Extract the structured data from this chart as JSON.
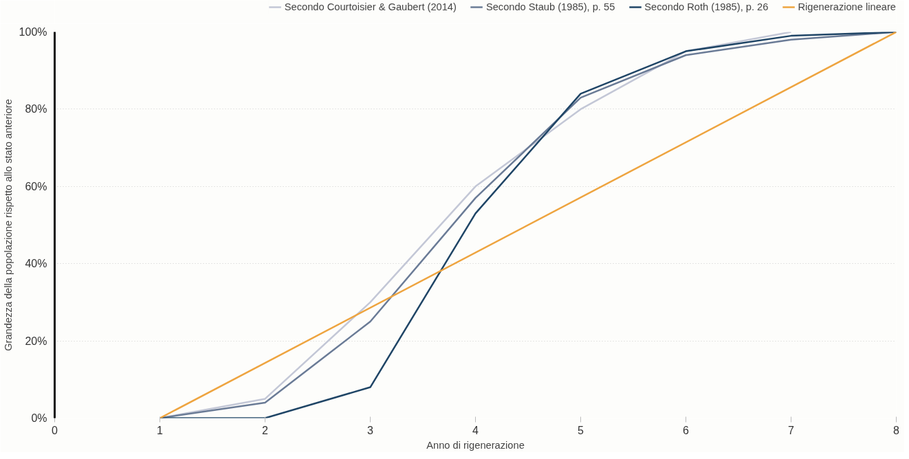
{
  "chart_data": {
    "type": "line",
    "xlabel": "Anno di rigenerazione",
    "ylabel": "Grandezza della popolazione rispetto allo stato anteriore",
    "xlim": [
      0,
      8
    ],
    "xticks": [
      0,
      1,
      2,
      3,
      4,
      5,
      6,
      7,
      8
    ],
    "ylim": [
      0,
      100
    ],
    "yticks": [
      {
        "value": 0,
        "label": "0%"
      },
      {
        "value": 20,
        "label": "20%"
      },
      {
        "value": 40,
        "label": "40%"
      },
      {
        "value": 60,
        "label": "60%"
      },
      {
        "value": 80,
        "label": "80%"
      },
      {
        "value": 100,
        "label": "100%"
      }
    ],
    "grid": "y",
    "legend": "top",
    "marker": "none",
    "line_style": "solid",
    "series": [
      {
        "name": "Secondo Courtoisier & Gaubert (2014)",
        "color": "#c3c7d6",
        "x": [
          1,
          2,
          3,
          4,
          5,
          6,
          7
        ],
        "values": [
          0,
          5,
          30,
          60,
          80,
          95,
          100
        ]
      },
      {
        "name": "Secondo Staub (1985), p. 55",
        "color": "#6a7b96",
        "x": [
          1,
          2,
          3,
          4,
          5,
          6,
          7,
          8
        ],
        "values": [
          0,
          4,
          25,
          57,
          83,
          94,
          98,
          100
        ]
      },
      {
        "name": "Secondo Roth (1985), p. 26",
        "color": "#1f4566",
        "x": [
          1,
          2,
          3,
          4,
          5,
          6,
          7,
          8
        ],
        "values": [
          0,
          0,
          8,
          53,
          84,
          95,
          99,
          100
        ]
      },
      {
        "name": "Rigenerazione lineare",
        "color": "#eea43f",
        "x": [
          1,
          8
        ],
        "values": [
          0,
          100
        ]
      }
    ]
  }
}
